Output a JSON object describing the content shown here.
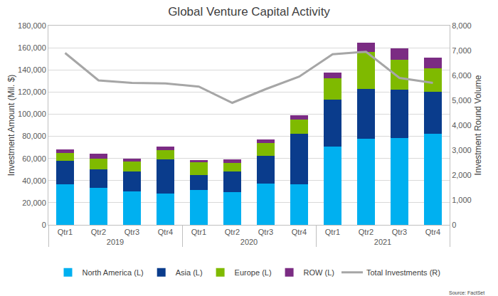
{
  "chart_data": {
    "type": "bar",
    "title": "Global Venture Capital Activity",
    "stacked": true,
    "grid": true,
    "legend": "bottom",
    "y_label": "Investment Amount (Mil. $)",
    "y2_label": "Investment Round Volume",
    "annotations": [
      "Source: FactSet"
    ],
    "categories": [
      [
        "2019",
        "Qtr1"
      ],
      [
        "2019",
        "Qtr2"
      ],
      [
        "2019",
        "Qtr3"
      ],
      [
        "2019",
        "Qtr4"
      ],
      [
        "2020",
        "Qtr1"
      ],
      [
        "2020",
        "Qtr2"
      ],
      [
        "2020",
        "Qtr3"
      ],
      [
        "2020",
        "Qtr4"
      ],
      [
        "2021",
        "Qtr1"
      ],
      [
        "2021",
        "Qtr2"
      ],
      [
        "2021",
        "Qtr3"
      ],
      [
        "2021",
        "Qtr4"
      ]
    ],
    "series": [
      {
        "name": "North America (L)",
        "type": "bar",
        "color": "#00b0f0",
        "values": [
          36500,
          33500,
          30500,
          28500,
          31500,
          29500,
          37000,
          36500,
          71000,
          77500,
          78500,
          82500
        ]
      },
      {
        "name": "Asia (L)",
        "type": "bar",
        "color": "#0a3c8c",
        "values": [
          21500,
          16500,
          17500,
          30500,
          13500,
          19000,
          25500,
          46000,
          42000,
          45000,
          43500,
          37500
        ]
      },
      {
        "name": "Europe (L)",
        "type": "bar",
        "color": "#7fba00",
        "values": [
          7000,
          10000,
          9000,
          8500,
          11500,
          7500,
          11500,
          12500,
          19500,
          34000,
          27000,
          21500
        ]
      },
      {
        "name": "ROW (L)",
        "type": "bar",
        "color": "#7b2c83",
        "values": [
          3000,
          4000,
          3000,
          3500,
          2000,
          3000,
          3000,
          4000,
          5000,
          8000,
          10500,
          9500
        ]
      },
      {
        "name": "Total Investments (R)",
        "type": "line",
        "axis": "y2",
        "color": "#a6a6a6",
        "values": [
          6900,
          5800,
          5700,
          5680,
          5550,
          4900,
          5450,
          5950,
          6850,
          6950,
          5900,
          5700
        ]
      }
    ],
    "ylim": [
      0,
      180000
    ],
    "yticks": [
      0,
      {
        "value": 20000,
        "label": "20,000"
      },
      {
        "value": 40000,
        "label": "40,000"
      },
      {
        "value": 60000,
        "label": "60,000"
      },
      {
        "value": 80000,
        "label": "80,000"
      },
      {
        "value": 100000,
        "label": "100,000"
      },
      {
        "value": 120000,
        "label": "120,000"
      },
      {
        "value": 140000,
        "label": "140,000"
      },
      {
        "value": 160000,
        "label": "160,000"
      },
      {
        "value": 180000,
        "label": "180,000"
      }
    ],
    "y2lim": [
      0,
      8000
    ],
    "y2ticks": [
      0,
      {
        "value": 1000,
        "label": "1,000"
      },
      {
        "value": 2000,
        "label": "2,000"
      },
      {
        "value": 3000,
        "label": "3,000"
      },
      {
        "value": 4000,
        "label": "4,000"
      },
      {
        "value": 5000,
        "label": "5,000"
      },
      {
        "value": 6000,
        "label": "6,000"
      },
      {
        "value": 7000,
        "label": "7,000"
      },
      {
        "value": 8000,
        "label": "8,000"
      }
    ]
  }
}
